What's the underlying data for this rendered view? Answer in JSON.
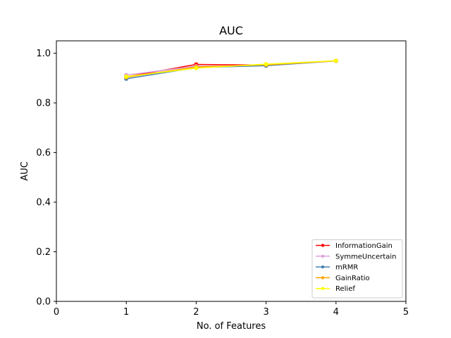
{
  "chart_data": {
    "type": "line",
    "title": "AUC",
    "xlabel": "No. of Features",
    "ylabel": "AUC",
    "xlim": [
      0,
      5
    ],
    "ylim": [
      0.0,
      1.05
    ],
    "xticks": [
      0,
      1,
      2,
      3,
      4,
      5
    ],
    "xtick_labels": [
      "0",
      "1",
      "2",
      "3",
      "4",
      "5"
    ],
    "yticks": [
      0.0,
      0.2,
      0.4,
      0.6,
      0.8,
      1.0
    ],
    "ytick_labels": [
      "0.0",
      "0.2",
      "0.4",
      "0.6",
      "0.8",
      "1.0"
    ],
    "grid": false,
    "legend_position": "bottom-right",
    "x": [
      1,
      2,
      3,
      4
    ],
    "series": [
      {
        "name": "InformationGain",
        "color": "#ff0000",
        "values": [
          0.905,
          0.955,
          0.952,
          0.97
        ]
      },
      {
        "name": "SymmeUncertain",
        "color": "#dda0dd",
        "values": [
          0.912,
          0.948,
          0.95,
          0.969
        ]
      },
      {
        "name": "mRMR",
        "color": "#4682b4",
        "values": [
          0.897,
          0.942,
          0.95,
          0.969
        ]
      },
      {
        "name": "GainRatio",
        "color": "#ffa500",
        "values": [
          0.903,
          0.945,
          0.953,
          0.969
        ]
      },
      {
        "name": "Relief",
        "color": "#ffff00",
        "values": [
          0.906,
          0.94,
          0.956,
          0.97
        ]
      }
    ]
  }
}
